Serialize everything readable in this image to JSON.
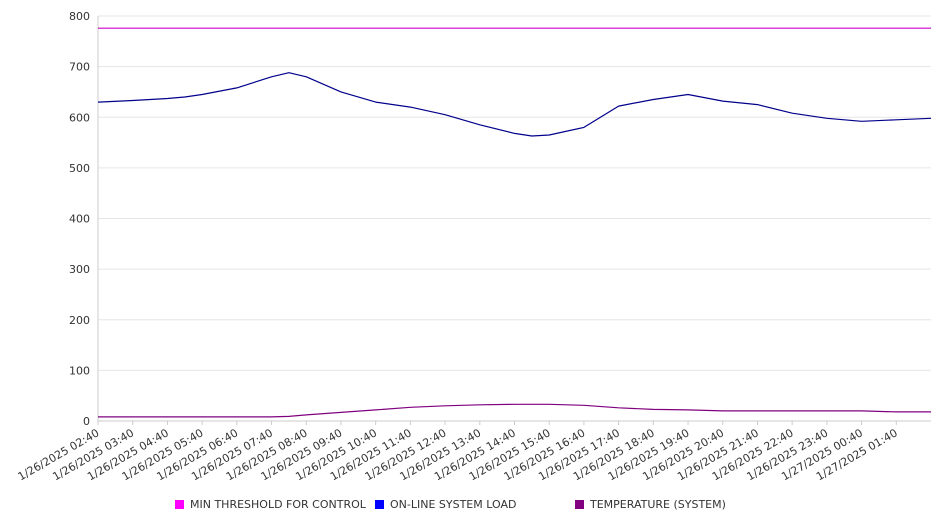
{
  "chart_data": {
    "type": "line",
    "title": "",
    "xlabel": "",
    "ylabel": "",
    "ylim": [
      0,
      800
    ],
    "y_ticks": [
      0,
      100,
      200,
      300,
      400,
      500,
      600,
      700,
      800
    ],
    "x_range": [
      "1/26/2025 02:40",
      "1/27/2025 02:40"
    ],
    "x_tick_labels": [
      "1/26/2025 02:40",
      "1/26/2025 03:40",
      "1/26/2025 04:40",
      "1/26/2025 05:40",
      "1/26/2025 06:40",
      "1/26/2025 07:40",
      "1/26/2025 08:40",
      "1/26/2025 09:40",
      "1/26/2025 10:40",
      "1/26/2025 11:40",
      "1/26/2025 12:40",
      "1/26/2025 13:40",
      "1/26/2025 14:40",
      "1/26/2025 15:40",
      "1/26/2025 16:40",
      "1/26/2025 17:40",
      "1/26/2025 18:40",
      "1/26/2025 19:40",
      "1/26/2025 20:40",
      "1/26/2025 21:40",
      "1/26/2025 22:40",
      "1/26/2025 23:40",
      "1/27/2025 00:40",
      "1/27/2025 01:40"
    ],
    "grid": true,
    "legend_position": "bottom",
    "x": [
      "1/26/2025 02:40",
      "1/26/2025 03:40",
      "1/26/2025 04:40",
      "1/26/2025 05:10",
      "1/26/2025 05:40",
      "1/26/2025 06:40",
      "1/26/2025 07:40",
      "1/26/2025 08:10",
      "1/26/2025 08:40",
      "1/26/2025 09:40",
      "1/26/2025 10:40",
      "1/26/2025 11:40",
      "1/26/2025 12:40",
      "1/26/2025 13:40",
      "1/26/2025 14:40",
      "1/26/2025 15:10",
      "1/26/2025 15:40",
      "1/26/2025 16:40",
      "1/26/2025 17:40",
      "1/26/2025 18:40",
      "1/26/2025 19:40",
      "1/26/2025 20:40",
      "1/26/2025 21:40",
      "1/26/2025 22:40",
      "1/26/2025 23:40",
      "1/27/2025 00:40",
      "1/27/2025 01:40",
      "1/27/2025 02:40"
    ],
    "series": [
      {
        "name": "MIN THRESHOLD FOR CONTROL",
        "color": "#cc00cc",
        "values": [
          776,
          776,
          776,
          776,
          776,
          776,
          776,
          776,
          776,
          776,
          776,
          776,
          776,
          776,
          776,
          776,
          776,
          776,
          776,
          776,
          776,
          776,
          776,
          776,
          776,
          776,
          776,
          776
        ]
      },
      {
        "name": "ON-LINE SYSTEM LOAD",
        "color": "#00008b",
        "values": [
          630,
          633,
          637,
          640,
          645,
          658,
          680,
          688,
          680,
          650,
          630,
          620,
          605,
          585,
          568,
          563,
          565,
          580,
          622,
          635,
          645,
          632,
          625,
          608,
          598,
          592,
          595,
          598
        ]
      },
      {
        "name": "TEMPERATURE (SYSTEM)",
        "color": "#800080",
        "values": [
          8,
          8,
          8,
          8,
          8,
          8,
          8,
          9,
          12,
          17,
          22,
          27,
          30,
          32,
          33,
          33,
          33,
          31,
          26,
          23,
          22,
          20,
          20,
          20,
          20,
          20,
          18,
          18
        ]
      }
    ]
  },
  "legend": [
    {
      "label": "MIN THRESHOLD FOR CONTROL",
      "color": "#ff00ff"
    },
    {
      "label": "ON-LINE SYSTEM LOAD",
      "color": "#0000ff"
    },
    {
      "label": "TEMPERATURE (SYSTEM)",
      "color": "#800080"
    }
  ]
}
